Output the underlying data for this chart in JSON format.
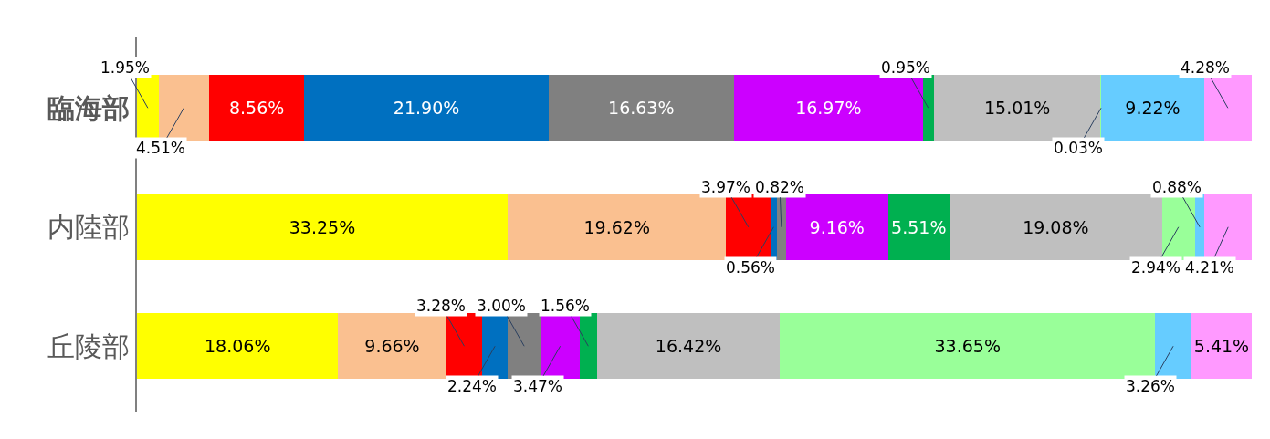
{
  "chart_data": {
    "type": "bar",
    "orientation": "horizontal",
    "stacked": true,
    "data_labels": true,
    "categories": [
      "臨海部",
      "内陸部",
      "丘陵部"
    ],
    "series": [
      {
        "color": "#ffff00",
        "values": [
          1.95,
          33.25,
          18.06
        ],
        "value_labels": [
          "1.95%",
          "33.25%",
          "18.06%"
        ]
      },
      {
        "color": "#fac090",
        "values": [
          4.51,
          19.62,
          9.66
        ],
        "value_labels": [
          "4.51%",
          "19.62%",
          "9.66%"
        ]
      },
      {
        "color": "#ff0000",
        "values": [
          8.56,
          3.97,
          3.28
        ],
        "value_labels": [
          "8.56%",
          "3.97%",
          "3.28%"
        ]
      },
      {
        "color": "#0070c0",
        "values": [
          21.9,
          0.56,
          2.24
        ],
        "value_labels": [
          "21.90%",
          "0.56%",
          "2.24%"
        ]
      },
      {
        "color": "#808080",
        "values": [
          16.63,
          0.82,
          3.0
        ],
        "value_labels": [
          "16.63%",
          "0.82%",
          "3.00%"
        ]
      },
      {
        "color": "#cc00ff",
        "values": [
          16.97,
          9.16,
          3.47
        ],
        "value_labels": [
          "16.97%",
          "9.16%",
          "3.47%"
        ]
      },
      {
        "color": "#00b050",
        "values": [
          0.95,
          5.51,
          1.56
        ],
        "value_labels": [
          "0.95%",
          "5.51%",
          "1.56%"
        ]
      },
      {
        "color": "#bfbfbf",
        "values": [
          15.01,
          19.08,
          16.42
        ],
        "value_labels": [
          "15.01%",
          "19.08%",
          "16.42%"
        ]
      },
      {
        "color": "#99ff99",
        "values": [
          0.03,
          2.94,
          33.65
        ],
        "value_labels": [
          "0.03%",
          "2.94%",
          "33.65%"
        ]
      },
      {
        "color": "#66ccff",
        "values": [
          9.22,
          0.88,
          3.26
        ],
        "value_labels": [
          "9.22%",
          "0.88%",
          "3.26%"
        ]
      },
      {
        "color": "#ff99ff",
        "values": [
          4.28,
          4.21,
          5.41
        ],
        "value_labels": [
          "4.28%",
          "4.21%",
          "5.41%"
        ]
      }
    ]
  }
}
